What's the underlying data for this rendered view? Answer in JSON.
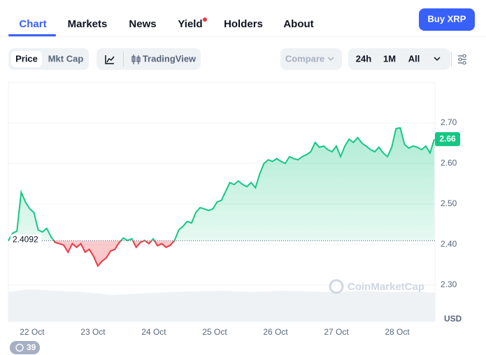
{
  "nav": {
    "tabs": [
      "Chart",
      "Markets",
      "News",
      "Yield",
      "Holders",
      "About"
    ],
    "active_tab": 0,
    "dot_tab": 3,
    "button": "Buy XRP"
  },
  "toolbar": {
    "view": [
      "Price",
      "Mkt Cap"
    ],
    "chart_style": "TradingView",
    "compare": "Compare",
    "ranges": [
      "24h",
      "1M",
      "All"
    ]
  },
  "chart_data": {
    "type": "line",
    "x": [
      21.61,
      21.68,
      21.75,
      21.82,
      21.89,
      21.96,
      22.03,
      22.1,
      22.17,
      22.24,
      22.31,
      22.38,
      22.45,
      22.52,
      22.59,
      22.66,
      22.73,
      22.8,
      22.87,
      22.94,
      23.01,
      23.08,
      23.15,
      23.22,
      23.29,
      23.36,
      23.43,
      23.5,
      23.57,
      23.64,
      23.71,
      23.78,
      23.85,
      23.92,
      23.99,
      24.06,
      24.13,
      24.2,
      24.27,
      24.34,
      24.41,
      24.48,
      24.55,
      24.62,
      24.69,
      24.76,
      24.83,
      24.9,
      24.97,
      25.04,
      25.11,
      25.18,
      25.25,
      25.32,
      25.39,
      25.46,
      25.53,
      25.6,
      25.67,
      25.74,
      25.81,
      25.88,
      25.95,
      26.02,
      26.09,
      26.16,
      26.23,
      26.3,
      26.37,
      26.44,
      26.51,
      26.58,
      26.65,
      26.72,
      26.79,
      26.86,
      26.93,
      27.0,
      27.07,
      27.14,
      27.21,
      27.28,
      27.35,
      27.42,
      27.49,
      27.56,
      27.63,
      27.7,
      27.77,
      27.84,
      27.91,
      27.98,
      28.05,
      28.12,
      28.19,
      28.26,
      28.33,
      28.4,
      28.47,
      28.54,
      28.61
    ],
    "values": [
      2.41,
      2.428,
      2.433,
      2.529,
      2.505,
      2.488,
      2.479,
      2.436,
      2.431,
      2.44,
      2.419,
      2.405,
      2.402,
      2.398,
      2.381,
      2.402,
      2.393,
      2.402,
      2.381,
      2.388,
      2.371,
      2.347,
      2.359,
      2.367,
      2.384,
      2.388,
      2.405,
      2.416,
      2.41,
      2.414,
      2.393,
      2.405,
      2.41,
      2.402,
      2.414,
      2.397,
      2.402,
      2.393,
      2.398,
      2.41,
      2.436,
      2.445,
      2.457,
      2.453,
      2.479,
      2.491,
      2.488,
      2.484,
      2.488,
      2.505,
      2.509,
      2.531,
      2.553,
      2.548,
      2.557,
      2.548,
      2.543,
      2.553,
      2.54,
      2.574,
      2.6,
      2.609,
      2.605,
      2.612,
      2.605,
      2.6,
      2.617,
      2.612,
      2.609,
      2.617,
      2.622,
      2.629,
      2.652,
      2.64,
      2.643,
      2.634,
      2.629,
      2.643,
      2.617,
      2.643,
      2.66,
      2.652,
      2.664,
      2.65,
      2.643,
      2.634,
      2.629,
      2.64,
      2.626,
      2.617,
      2.64,
      2.686,
      2.688,
      2.647,
      2.638,
      2.643,
      2.64,
      2.634,
      2.643,
      2.626,
      2.66
    ],
    "xlim": [
      21.61,
      28.62
    ],
    "ylim": [
      2.21,
      2.8
    ],
    "xticks": [
      {
        "value": 22,
        "label": "22 Oct"
      },
      {
        "value": 23,
        "label": "23 Oct"
      },
      {
        "value": 24,
        "label": "24 Oct"
      },
      {
        "value": 25,
        "label": "25 Oct"
      },
      {
        "value": 26,
        "label": "26 Oct"
      },
      {
        "value": 27,
        "label": "27 Oct"
      },
      {
        "value": 28,
        "label": "28 Oct"
      }
    ],
    "yticks": [
      {
        "value": 2.3,
        "label": "2.30"
      },
      {
        "value": 2.4,
        "label": "2.40"
      },
      {
        "value": 2.5,
        "label": "2.50"
      },
      {
        "value": 2.6,
        "label": "2.60"
      },
      {
        "value": 2.7,
        "label": "2.70"
      }
    ],
    "y_unit": "USD",
    "baseline": 2.4092,
    "last_value": 2.66,
    "color_above": "#16c784",
    "color_below": "#ea3943",
    "grid": true
  },
  "watermark": "CoinMarketCap",
  "badge": 39
}
